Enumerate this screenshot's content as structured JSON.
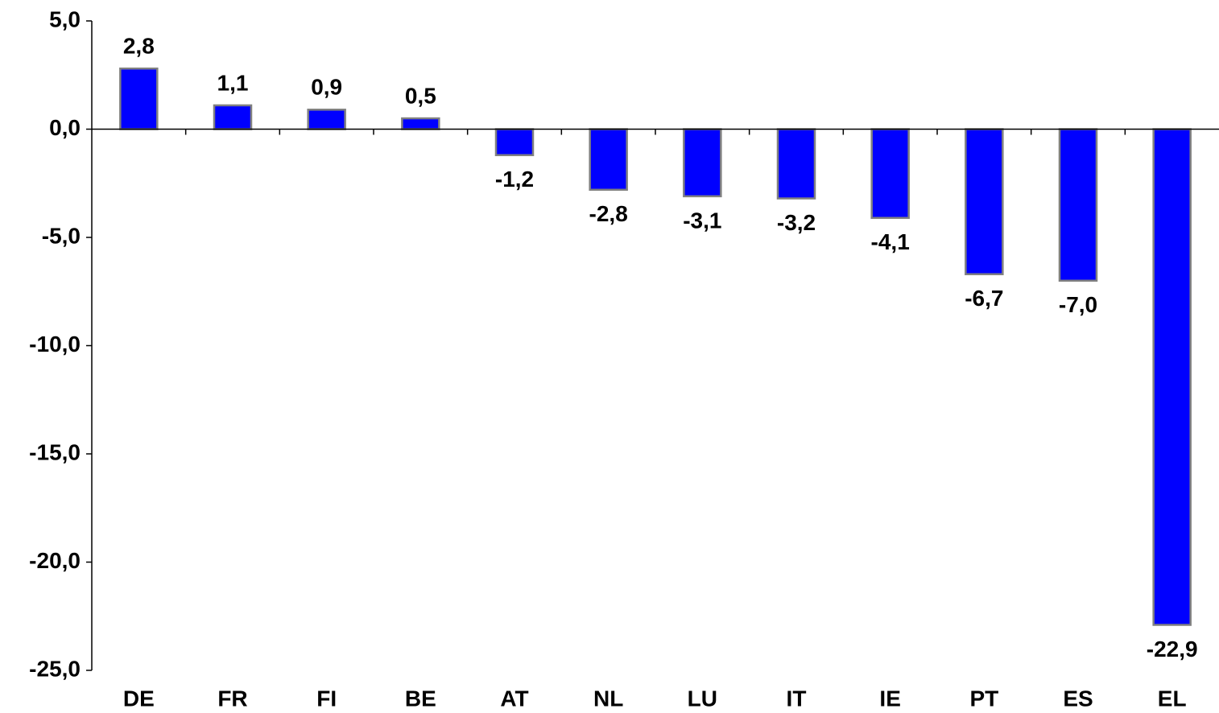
{
  "chart_data": {
    "type": "bar",
    "categories": [
      "DE",
      "FR",
      "FI",
      "BE",
      "AT",
      "NL",
      "LU",
      "IT",
      "IE",
      "PT",
      "ES",
      "EL"
    ],
    "values": [
      2.8,
      1.1,
      0.9,
      0.5,
      -1.2,
      -2.8,
      -3.1,
      -3.2,
      -4.1,
      -6.7,
      -7.0,
      -22.9
    ],
    "value_labels": [
      "2,8",
      "1,1",
      "0,9",
      "0,5",
      "-1,2",
      "-2,8",
      "-3,1",
      "-3,2",
      "-4,1",
      "-6,7",
      "-7,0",
      "-22,9"
    ],
    "color": "#0000ff",
    "ylim": [
      -25,
      5
    ],
    "yticks": [
      {
        "value": 5,
        "label": "5,0"
      },
      {
        "value": 0,
        "label": "0,0"
      },
      {
        "value": -5,
        "label": "-5,0"
      },
      {
        "value": -10,
        "label": "-10,0"
      },
      {
        "value": -15,
        "label": "-15,0"
      },
      {
        "value": -20,
        "label": "-20,0"
      },
      {
        "value": -25,
        "label": "-25,0"
      }
    ],
    "grid": false
  }
}
